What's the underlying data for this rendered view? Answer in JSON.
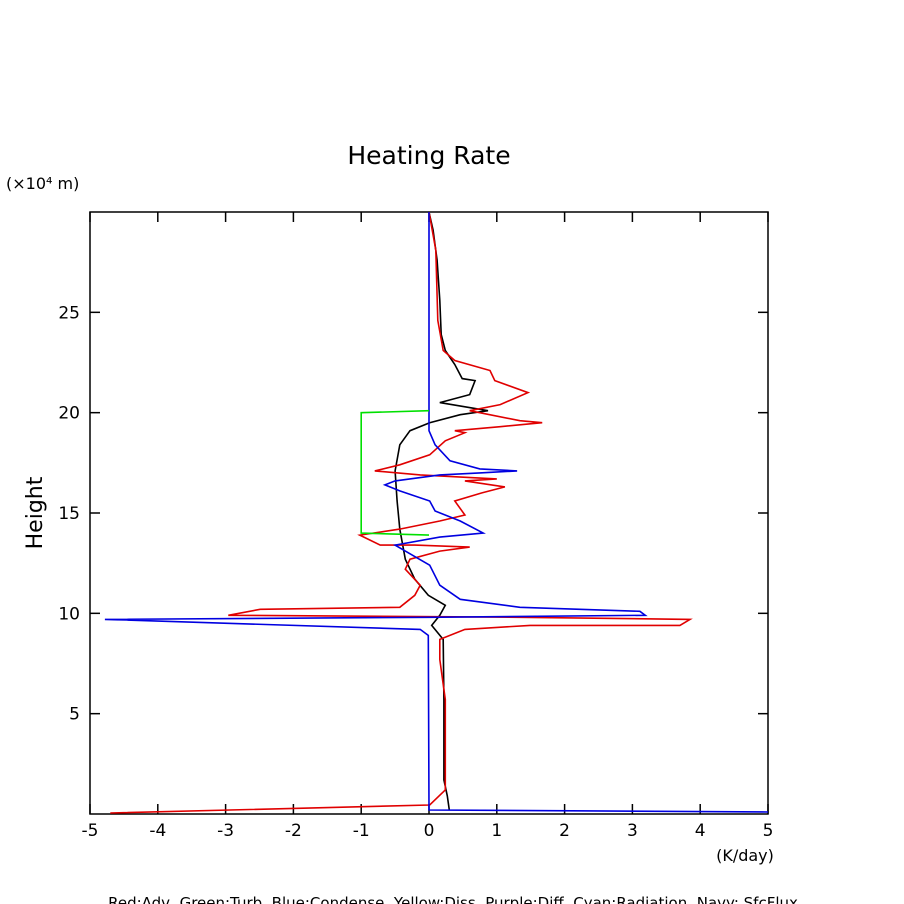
{
  "chart_data": {
    "type": "line",
    "title": "Heating Rate",
    "y_label": "Height",
    "y_unit": "(×10⁴ m)",
    "x_unit": "(K/day)",
    "legend_text": "Red:Adv, Green:Turb, Blue:Condense, Yellow:Diss, Purple:Diff, Cyan:Radiation, Navy: SfcFlux",
    "xlim": [
      -5,
      5
    ],
    "xticks": [
      -5,
      -4,
      -3,
      -2,
      -1,
      0,
      1,
      2,
      3,
      4,
      5
    ],
    "ylim": [
      0,
      30
    ],
    "yticks": [
      5,
      10,
      15,
      20,
      25
    ],
    "series": [
      {
        "color": "#000000",
        "x": [
          0,
          0.06,
          0.12,
          0.16,
          0.18,
          0.24,
          0.38,
          0.49,
          0.68,
          0.6,
          0.16,
          0.87,
          0.46,
          0.01,
          -0.28,
          -0.43,
          -0.5,
          -0.47,
          -0.43,
          -0.35,
          -0.21,
          -0.01,
          0.24,
          0.16,
          0.04,
          0.21,
          0.22,
          0.22,
          0.27,
          0.3
        ],
        "y": [
          30,
          29.1,
          27.6,
          25.6,
          23.9,
          23.1,
          22.4,
          21.7,
          21.6,
          20.9,
          20.5,
          20.1,
          19.9,
          19.5,
          19.1,
          18.4,
          17.1,
          15.6,
          14.2,
          12.7,
          11.7,
          10.9,
          10.4,
          9.9,
          9.4,
          8.7,
          5.7,
          1.7,
          0.9,
          0.2
        ]
      },
      {
        "color": "#e00000",
        "x": [
          0,
          0.1,
          0.13,
          0.21,
          0.38,
          0.9,
          0.97,
          1.46,
          1.05,
          0.6,
          1.34,
          1.67,
          1.05,
          0.38,
          0.53,
          0.24,
          0.01,
          -0.43,
          -0.8,
          -0.13,
          1.0,
          0.53,
          1.12,
          0.78,
          0.38,
          0.53,
          0.16,
          -0.43,
          -1.02,
          -0.72,
          -0.21,
          0.6,
          0.16,
          -0.28,
          -0.35,
          -0.13,
          -0.21,
          -0.43,
          -2.49,
          -2.96,
          1.34,
          3.85,
          3.7,
          1.49,
          0.53,
          0.16,
          0.16,
          0.24,
          0.24,
          0.01,
          -4.7
        ],
        "y": [
          30,
          28.1,
          24.6,
          23.1,
          22.6,
          22.1,
          21.6,
          21.0,
          20.4,
          20.1,
          19.6,
          19.5,
          19.3,
          19.1,
          19.0,
          18.6,
          17.9,
          17.4,
          17.1,
          16.9,
          16.7,
          16.6,
          16.3,
          16.0,
          15.6,
          14.9,
          14.6,
          14.2,
          13.9,
          13.4,
          13.4,
          13.3,
          13.1,
          12.7,
          12.2,
          11.4,
          10.9,
          10.3,
          10.2,
          9.9,
          9.8,
          9.7,
          9.4,
          9.4,
          9.2,
          8.7,
          7.7,
          5.7,
          1.2,
          0.45,
          0.05
        ]
      },
      {
        "color": "#0000e0",
        "x": [
          0,
          0,
          0.09,
          0.31,
          0.75,
          1.3,
          0.75,
          0.16,
          -0.5,
          -0.65,
          -0.43,
          0.01,
          0.09,
          0.46,
          0.8,
          0.16,
          -0.5,
          -0.35,
          0.01,
          0.16,
          0.46,
          1.34,
          3.11,
          3.19,
          0.01,
          -4.78,
          -0.13,
          -0.01,
          0,
          5
        ],
        "y": [
          30,
          19.1,
          18.4,
          17.6,
          17.2,
          17.1,
          17.0,
          16.9,
          16.6,
          16.4,
          16.1,
          15.6,
          15.1,
          14.6,
          14.0,
          13.8,
          13.4,
          13.1,
          12.4,
          11.4,
          10.7,
          10.3,
          10.1,
          9.9,
          9.8,
          9.7,
          9.2,
          8.9,
          0.2,
          0.1
        ]
      },
      {
        "color": "#00e000",
        "x": [
          0,
          -1,
          -1,
          0
        ],
        "y": [
          20.1,
          20.0,
          14.0,
          13.9
        ]
      }
    ]
  }
}
